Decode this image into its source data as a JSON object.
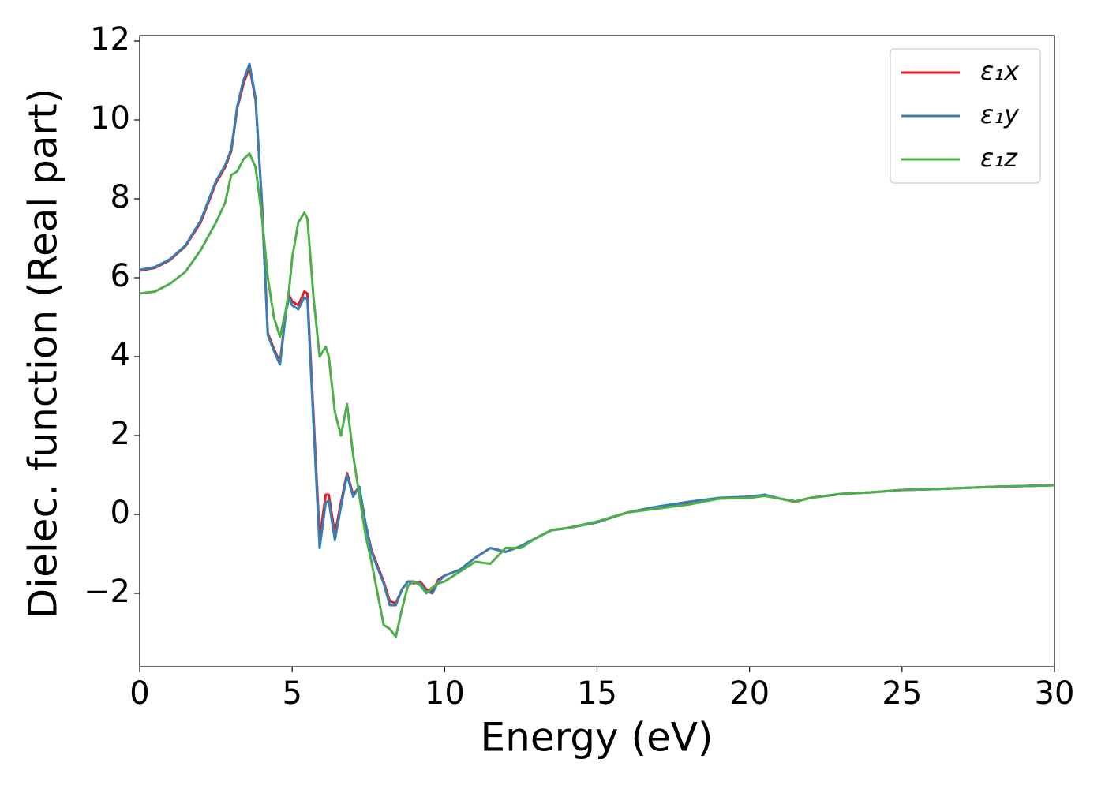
{
  "chart_data": {
    "type": "line",
    "xlabel": "Energy (eV)",
    "ylabel": "Dielec. function (Real part)",
    "x": [
      0,
      0.5,
      1,
      1.5,
      2,
      2.5,
      2.8,
      3,
      3.2,
      3.4,
      3.6,
      3.8,
      4.0,
      4.2,
      4.4,
      4.6,
      4.8,
      4.9,
      5.0,
      5.2,
      5.4,
      5.5,
      5.7,
      5.9,
      6.1,
      6.2,
      6.4,
      6.6,
      6.8,
      7.0,
      7.2,
      7.4,
      7.6,
      7.8,
      8.0,
      8.2,
      8.4,
      8.6,
      8.8,
      9.0,
      9.2,
      9.4,
      9.6,
      9.8,
      10,
      10.5,
      11,
      11.5,
      12,
      12.5,
      13,
      13.5,
      14,
      15,
      16,
      17,
      18,
      19,
      20,
      20.5,
      21,
      21.5,
      22,
      23,
      24,
      25,
      26,
      27,
      28,
      29,
      30
    ],
    "series": [
      {
        "name": "ε₁x",
        "color": "#e41a1c",
        "values": [
          6.18,
          6.25,
          6.45,
          6.8,
          7.4,
          8.4,
          8.8,
          9.2,
          10.3,
          10.9,
          11.35,
          10.5,
          8.0,
          4.6,
          4.2,
          3.85,
          5.2,
          5.55,
          5.4,
          5.3,
          5.65,
          5.6,
          2.5,
          -0.6,
          0.5,
          0.5,
          -0.5,
          0.3,
          1.05,
          0.5,
          0.7,
          -0.2,
          -0.9,
          -1.3,
          -1.7,
          -2.2,
          -2.25,
          -1.9,
          -1.7,
          -1.75,
          -1.7,
          -1.9,
          -1.95,
          -1.65,
          -1.55,
          -1.4,
          -1.1,
          -0.85,
          -0.95,
          -0.8,
          -0.6,
          -0.4,
          -0.35,
          -0.2,
          0.05,
          0.2,
          0.3,
          0.4,
          0.45,
          0.48,
          0.4,
          0.32,
          0.42,
          0.52,
          0.56,
          0.62,
          0.64,
          0.67,
          0.7,
          0.72,
          0.74
        ]
      },
      {
        "name": "ε₁y",
        "color": "#377eb8",
        "values": [
          6.2,
          6.27,
          6.47,
          6.82,
          7.45,
          8.45,
          8.85,
          9.25,
          10.35,
          11.0,
          11.42,
          10.55,
          8.0,
          4.55,
          4.15,
          3.8,
          5.15,
          5.5,
          5.3,
          5.2,
          5.5,
          5.45,
          2.3,
          -0.85,
          0.3,
          0.35,
          -0.65,
          0.2,
          1.0,
          0.45,
          0.7,
          -0.2,
          -0.95,
          -1.35,
          -1.75,
          -2.3,
          -2.3,
          -1.9,
          -1.7,
          -1.7,
          -1.75,
          -1.95,
          -2.0,
          -1.7,
          -1.55,
          -1.4,
          -1.1,
          -0.85,
          -0.95,
          -0.8,
          -0.6,
          -0.4,
          -0.35,
          -0.2,
          0.05,
          0.2,
          0.32,
          0.42,
          0.45,
          0.5,
          0.4,
          0.33,
          0.42,
          0.52,
          0.56,
          0.62,
          0.64,
          0.67,
          0.7,
          0.72,
          0.74
        ]
      },
      {
        "name": "ε₁z",
        "color": "#4daf4a",
        "values": [
          5.6,
          5.65,
          5.85,
          6.15,
          6.7,
          7.4,
          7.9,
          8.6,
          8.7,
          9.0,
          9.15,
          8.8,
          7.6,
          6.0,
          5.0,
          4.5,
          5.2,
          5.7,
          6.5,
          7.4,
          7.65,
          7.5,
          5.5,
          4.0,
          4.25,
          4.0,
          2.6,
          2.0,
          2.8,
          1.5,
          0.5,
          -0.5,
          -1.2,
          -2.0,
          -2.8,
          -2.9,
          -3.1,
          -2.4,
          -1.8,
          -1.7,
          -1.8,
          -2.0,
          -1.85,
          -1.75,
          -1.7,
          -1.45,
          -1.2,
          -1.25,
          -0.85,
          -0.85,
          -0.6,
          -0.4,
          -0.35,
          -0.18,
          0.05,
          0.15,
          0.25,
          0.4,
          0.42,
          0.47,
          0.4,
          0.33,
          0.42,
          0.52,
          0.56,
          0.62,
          0.64,
          0.67,
          0.7,
          0.72,
          0.74
        ]
      }
    ],
    "xlim": [
      0,
      30
    ],
    "xticks": [
      0,
      5,
      10,
      15,
      20,
      25,
      30
    ],
    "ylim": [
      -3.86,
      12.14
    ],
    "yticks": [
      {
        "value": -2,
        "label": "−2"
      },
      0,
      2,
      4,
      6,
      8,
      10,
      12
    ],
    "grid": false,
    "legend": "upper right"
  }
}
